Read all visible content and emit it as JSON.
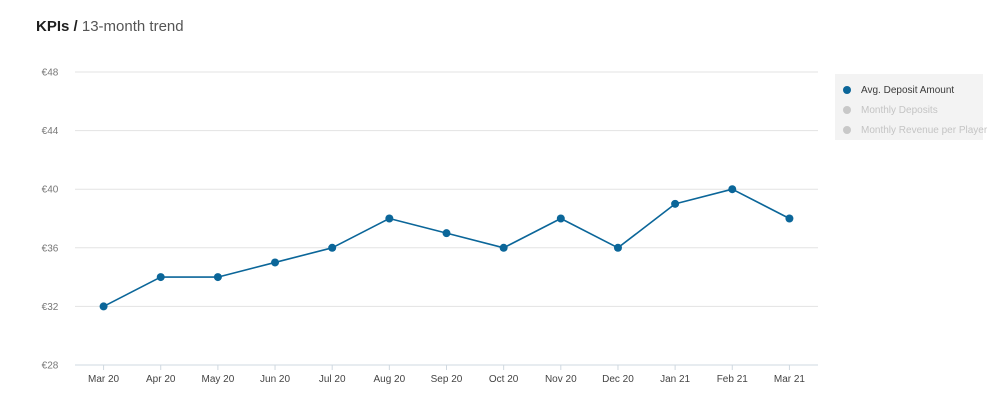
{
  "header": {
    "title": "KPIs",
    "separator": "/",
    "subtitle": "13-month trend"
  },
  "legend": {
    "items": [
      {
        "label": "Avg. Deposit Amount",
        "color": "#0b6699",
        "active": true
      },
      {
        "label": "Monthly Deposits",
        "color": "#c8c8c8",
        "active": false
      },
      {
        "label": "Monthly Revenue per Player",
        "color": "#c8c8c8",
        "active": false
      }
    ]
  },
  "chart_data": {
    "type": "line",
    "title": "",
    "xlabel": "",
    "ylabel": "",
    "categories": [
      "Mar 20",
      "Apr 20",
      "May 20",
      "Jun 20",
      "Jul 20",
      "Aug 20",
      "Sep 20",
      "Oct 20",
      "Nov 20",
      "Dec 20",
      "Jan 21",
      "Feb 21",
      "Mar 21"
    ],
    "series": [
      {
        "name": "Avg. Deposit Amount",
        "color": "#0b6699",
        "values": [
          32,
          34,
          34,
          35,
          36,
          38,
          37,
          36,
          38,
          36,
          39,
          40,
          38
        ]
      }
    ],
    "ylim": [
      28,
      48
    ],
    "yticks": [
      28,
      32,
      36,
      40,
      44,
      48
    ],
    "ytick_labels": [
      "€28",
      "€32",
      "€36",
      "€40",
      "€44",
      "€48"
    ],
    "grid": true,
    "legend_position": "right"
  }
}
